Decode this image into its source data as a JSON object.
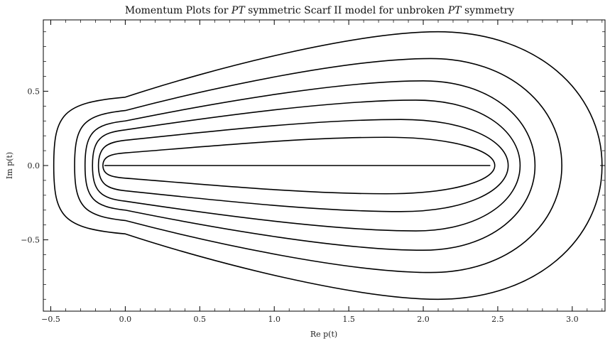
{
  "chart_data": {
    "type": "line",
    "title_parts": [
      {
        "text": "Momentum Plots for ",
        "italic": false
      },
      {
        "text": "PT",
        "italic": true
      },
      {
        "text": " symmetric Scarf  II model for unbroken ",
        "italic": false
      },
      {
        "text": "PT",
        "italic": true
      },
      {
        "text": " symmetry",
        "italic": false
      }
    ],
    "xlabel": "Re p(t)",
    "ylabel": "Im p(t)",
    "xlim": [
      -0.55,
      3.22
    ],
    "ylim": [
      -0.98,
      0.98
    ],
    "x_ticks": [
      -0.5,
      0.0,
      0.5,
      1.0,
      1.5,
      2.0,
      2.5,
      3.0
    ],
    "x_tick_labels": [
      "−0.5",
      "0.0",
      "0.5",
      "1.0",
      "1.5",
      "2.0",
      "2.5",
      "3.0"
    ],
    "y_ticks": [
      -0.5,
      0.0,
      0.5
    ],
    "y_tick_labels": [
      "−0.5",
      "0.0",
      "0.5"
    ],
    "grid": false,
    "series": [
      {
        "x_left": -0.14,
        "x_right": 2.45,
        "peak_x": 2.0,
        "peak_y": 0.0,
        "y_at_0": 0.0
      },
      {
        "x_left": -0.15,
        "x_right": 2.48,
        "peak_x": 1.75,
        "peak_y": 0.19,
        "y_at_0": 0.085
      },
      {
        "x_left": -0.18,
        "x_right": 2.57,
        "peak_x": 1.85,
        "peak_y": 0.31,
        "y_at_0": 0.17
      },
      {
        "x_left": -0.22,
        "x_right": 2.65,
        "peak_x": 1.95,
        "peak_y": 0.44,
        "y_at_0": 0.24
      },
      {
        "x_left": -0.27,
        "x_right": 2.75,
        "peak_x": 2.0,
        "peak_y": 0.57,
        "y_at_0": 0.3
      },
      {
        "x_left": -0.34,
        "x_right": 2.93,
        "peak_x": 2.05,
        "peak_y": 0.72,
        "y_at_0": 0.37
      },
      {
        "x_left": -0.48,
        "x_right": 3.2,
        "peak_x": 2.1,
        "peak_y": 0.9,
        "y_at_0": 0.46
      }
    ]
  }
}
